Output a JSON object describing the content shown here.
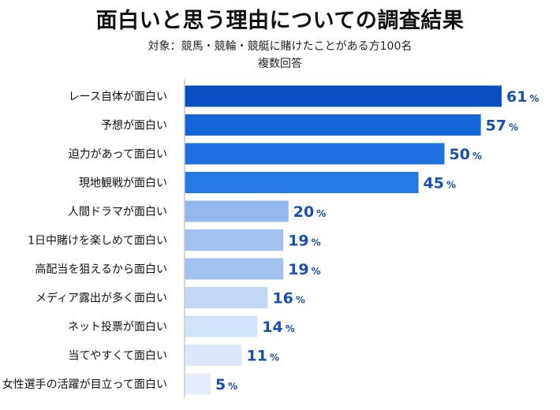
{
  "chart_data": {
    "type": "bar",
    "orientation": "horizontal",
    "title": "面白いと思う理由についての調査結果",
    "subtitle": "対象：競馬・競輪・競艇に賭けたことがある方100名",
    "subtitle2": "複数回答",
    "unit": "%",
    "categories": [
      "レース自体が面白い",
      "予想が面白い",
      "迫力があって面白い",
      "現地観戦が面白い",
      "人間ドラマが面白い",
      "1日中賭けを楽しめて面白い",
      "高配当を狙えるから面白い",
      "メディア露出が多く面白い",
      "ネット投票が面白い",
      "当てやすくて面白い",
      "女性選手の活躍が目立って面白い"
    ],
    "values": [
      61,
      57,
      50,
      45,
      20,
      19,
      19,
      16,
      14,
      11,
      5
    ],
    "bar_colors": [
      "#0a4ebf",
      "#1565d8",
      "#1e6fe0",
      "#2479e2",
      "#93b8f0",
      "#a2c2f2",
      "#a2c2f2",
      "#c4d8f6",
      "#d1e1f8",
      "#dde8fa",
      "#e6eefb"
    ],
    "value_color": "#1a4fae",
    "axis_color": "#c8c8c8",
    "grid": false,
    "legend": "none"
  }
}
